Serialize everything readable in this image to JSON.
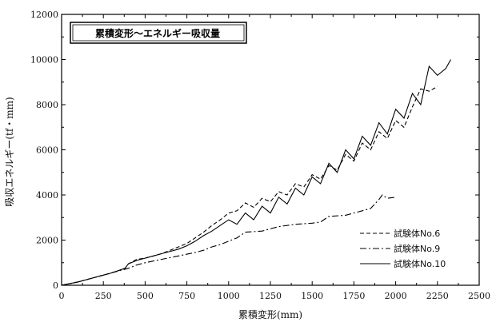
{
  "chart_data": {
    "type": "line",
    "title": "累積変形～エネルギー吸収量",
    "xlabel": "累積変形(mm)",
    "ylabel": "吸収エネルギー(tf・mm)",
    "xlim": [
      0,
      2500
    ],
    "ylim": [
      0,
      12000
    ],
    "x_ticks": [
      "0",
      "250",
      "500",
      "750",
      "1000",
      "1250",
      "1500",
      "1750",
      "2000",
      "2250",
      "2500"
    ],
    "y_ticks": [
      "0",
      "2000",
      "4000",
      "6000",
      "8000",
      "10000",
      "12000"
    ],
    "grid": false,
    "legend_position": "lower-right",
    "series": [
      {
        "name": "試験体No.6",
        "line_style": "dashed",
        "x": [
          0,
          100,
          200,
          300,
          380,
          400,
          450,
          500,
          550,
          600,
          650,
          700,
          750,
          800,
          850,
          900,
          950,
          1000,
          1050,
          1100,
          1150,
          1200,
          1250,
          1300,
          1350,
          1400,
          1450,
          1500,
          1550,
          1600,
          1650,
          1700,
          1750,
          1800,
          1850,
          1900,
          1950,
          2000,
          2050,
          2100,
          2150,
          2200,
          2250
        ],
        "y": [
          0,
          150,
          350,
          550,
          750,
          950,
          1150,
          1200,
          1300,
          1400,
          1550,
          1700,
          1850,
          2100,
          2350,
          2650,
          2900,
          3200,
          3300,
          3650,
          3450,
          3850,
          3700,
          4150,
          4000,
          4500,
          4350,
          4900,
          4700,
          5300,
          5100,
          5800,
          5500,
          6300,
          6000,
          6800,
          6500,
          7300,
          7000,
          7900,
          8700,
          8600,
          8800
        ]
      },
      {
        "name": "試験体No.9",
        "line_style": "dash-dot",
        "x": [
          0,
          100,
          200,
          300,
          400,
          450,
          500,
          600,
          700,
          800,
          850,
          900,
          950,
          1000,
          1050,
          1100,
          1200,
          1300,
          1400,
          1500,
          1550,
          1600,
          1700,
          1750,
          1800,
          1850,
          1900,
          1920,
          1950,
          2000
        ],
        "y": [
          0,
          150,
          350,
          550,
          750,
          900,
          1000,
          1150,
          1300,
          1450,
          1550,
          1700,
          1800,
          1950,
          2100,
          2350,
          2400,
          2600,
          2700,
          2750,
          2800,
          3050,
          3100,
          3200,
          3300,
          3400,
          3800,
          4000,
          3850,
          3900
        ]
      },
      {
        "name": "試験体No.10",
        "line_style": "solid",
        "x": [
          0,
          100,
          200,
          300,
          380,
          400,
          450,
          500,
          550,
          600,
          650,
          700,
          750,
          800,
          850,
          900,
          950,
          1000,
          1050,
          1100,
          1150,
          1200,
          1250,
          1300,
          1350,
          1400,
          1450,
          1500,
          1550,
          1600,
          1650,
          1700,
          1750,
          1800,
          1850,
          1900,
          1950,
          2000,
          2050,
          2100,
          2150,
          2200,
          2250,
          2300,
          2330
        ],
        "y": [
          0,
          150,
          350,
          550,
          750,
          950,
          1100,
          1200,
          1300,
          1400,
          1500,
          1600,
          1750,
          1950,
          2200,
          2400,
          2650,
          2900,
          2700,
          3200,
          2900,
          3500,
          3200,
          3900,
          3600,
          4300,
          4000,
          4800,
          4500,
          5400,
          5000,
          6000,
          5600,
          6600,
          6200,
          7200,
          6700,
          7800,
          7400,
          8500,
          8000,
          9700,
          9300,
          9600,
          10000
        ]
      }
    ]
  }
}
